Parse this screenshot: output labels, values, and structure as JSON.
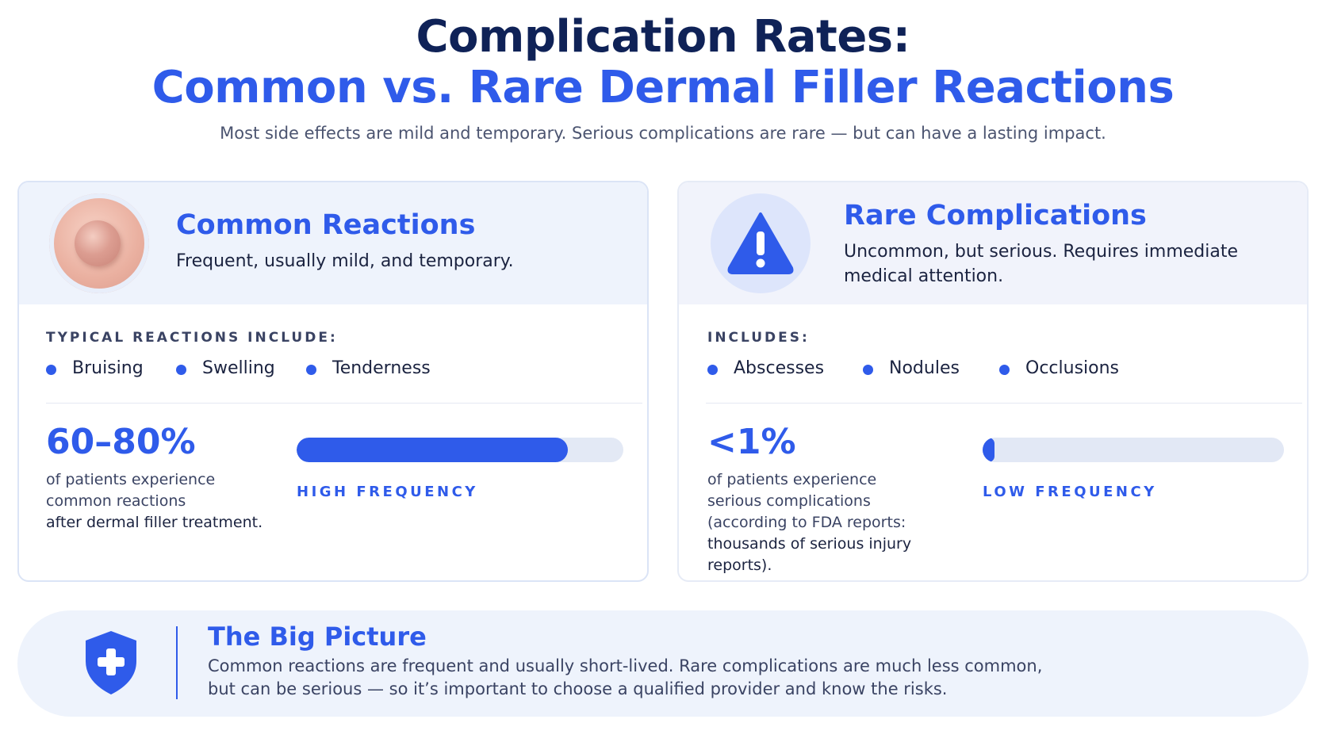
{
  "header": {
    "title_line1": "Complication Rates:",
    "title_line2": "Common vs. Rare Dermal Filler Reactions",
    "subtitle": "Most side effects are mild and temporary. Serious complications are rare — but can have a lasting impact."
  },
  "common": {
    "icon": "skin-bump-icon",
    "title": "Common Reactions",
    "description": "Frequent, usually mild, and temporary.",
    "section_label": "TYPICAL REACTIONS INCLUDE:",
    "items": [
      "Bruising",
      "Swelling",
      "Tenderness"
    ],
    "stat": "60–80%",
    "stat_desc_line1": "of patients experience",
    "stat_desc_line2": "common reactions",
    "stat_desc_line3": "after dermal filler treatment.",
    "frequency_fill": 0.83,
    "frequency_label": "HIGH FREQUENCY"
  },
  "rare": {
    "icon": "warning-icon",
    "title": "Rare Complications",
    "description_line1": "Uncommon, but serious. Requires immediate",
    "description_line2": "medical attention.",
    "section_label": "INCLUDES:",
    "items": [
      "Abscesses",
      "Nodules",
      "Occlusions"
    ],
    "stat": "<1%",
    "stat_desc_line1": "of patients experience",
    "stat_desc_line2": "serious complications",
    "stat_desc_line3": "(according to FDA reports:",
    "stat_desc_line4": "thousands of serious injury reports).",
    "frequency_fill": 0.04,
    "frequency_label": "LOW FREQUENCY"
  },
  "banner": {
    "icon": "shield-plus-icon",
    "title": "The Big Picture",
    "text_line1": "Common reactions are frequent and usually short-lived. Rare complications are much less common,",
    "text_line2": "but can be serious — so it’s important to choose a qualified provider and know the risks."
  },
  "colors": {
    "navy": "#0f2257",
    "accent": "#2f5bea",
    "panel": "#eef3fc"
  }
}
